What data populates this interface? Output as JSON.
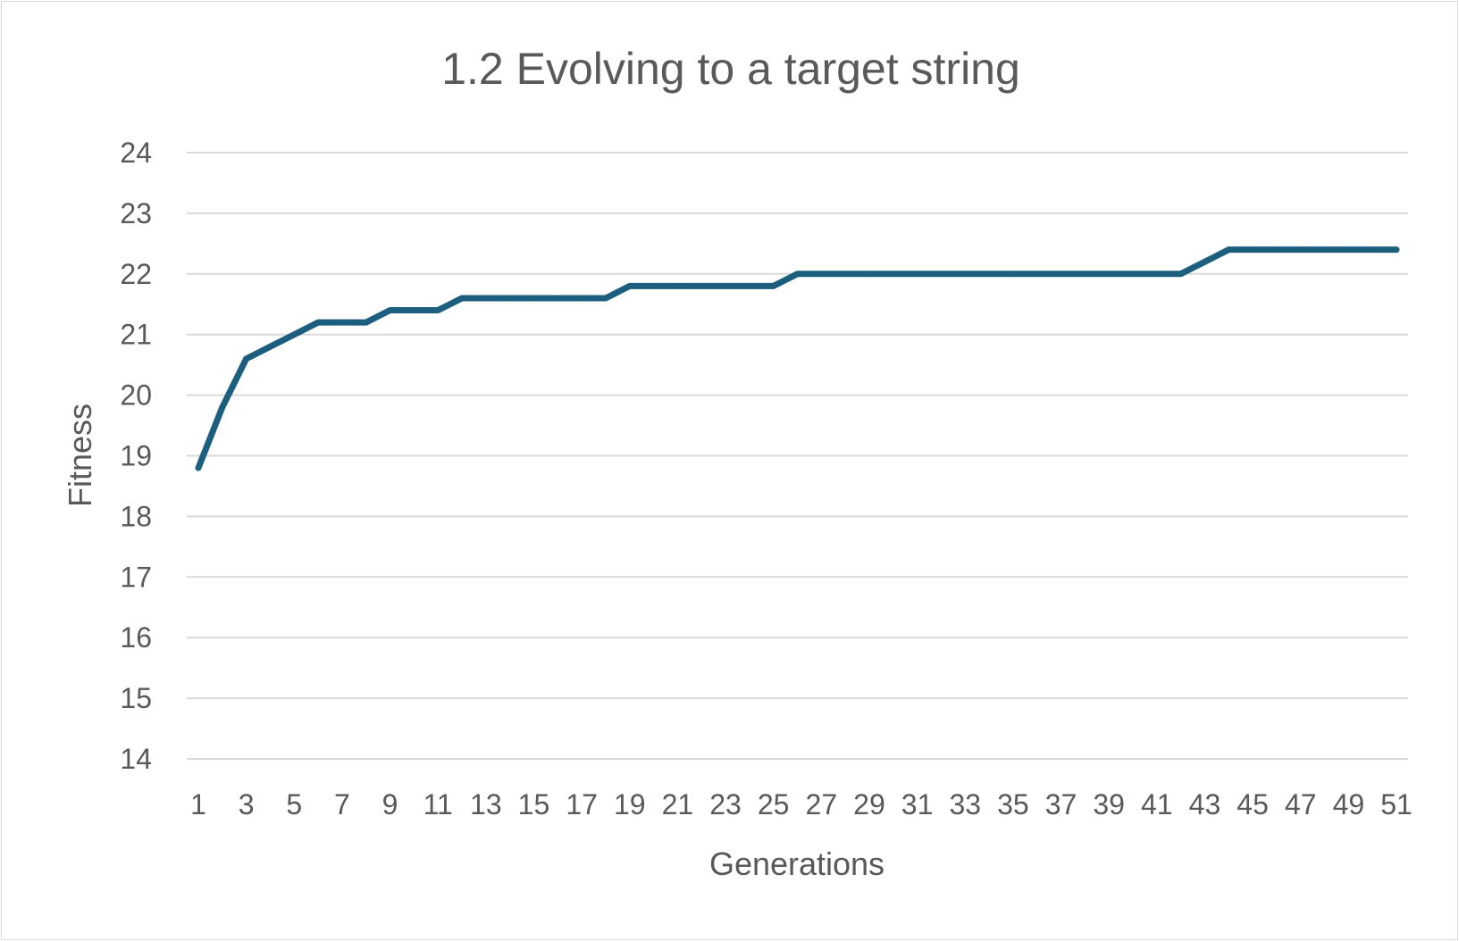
{
  "chart_data": {
    "type": "line",
    "title": "1.2 Evolving to a target string",
    "xlabel": "Generations",
    "ylabel": "Fitness",
    "ylim": [
      14,
      24
    ],
    "yticks": [
      "14",
      "15",
      "16",
      "17",
      "18",
      "19",
      "20",
      "21",
      "22",
      "23",
      "24"
    ],
    "x": [
      1,
      2,
      3,
      4,
      5,
      6,
      7,
      8,
      9,
      10,
      11,
      12,
      13,
      14,
      15,
      16,
      17,
      18,
      19,
      20,
      21,
      22,
      23,
      24,
      25,
      26,
      27,
      28,
      29,
      30,
      31,
      32,
      33,
      34,
      35,
      36,
      37,
      38,
      39,
      40,
      41,
      42,
      43,
      44,
      45,
      46,
      47,
      48,
      49,
      50,
      51
    ],
    "xticks": [
      "1",
      "3",
      "5",
      "7",
      "9",
      "11",
      "13",
      "15",
      "17",
      "19",
      "21",
      "23",
      "25",
      "27",
      "29",
      "31",
      "33",
      "35",
      "37",
      "39",
      "41",
      "43",
      "45",
      "47",
      "49",
      "51"
    ],
    "series": [
      {
        "color": "#1b5e7e",
        "values": [
          18.8,
          19.8,
          20.6,
          20.8,
          21.0,
          21.2,
          21.2,
          21.2,
          21.4,
          21.4,
          21.4,
          21.6,
          21.6,
          21.6,
          21.6,
          21.6,
          21.6,
          21.6,
          21.8,
          21.8,
          21.8,
          21.8,
          21.8,
          21.8,
          21.8,
          22.0,
          22.0,
          22.0,
          22.0,
          22.0,
          22.0,
          22.0,
          22.0,
          22.0,
          22.0,
          22.0,
          22.0,
          22.0,
          22.0,
          22.0,
          22.0,
          22.0,
          22.2,
          22.4,
          22.4,
          22.4,
          22.4,
          22.4,
          22.4,
          22.4,
          22.4
        ]
      }
    ],
    "grid": true,
    "legend": "none"
  }
}
